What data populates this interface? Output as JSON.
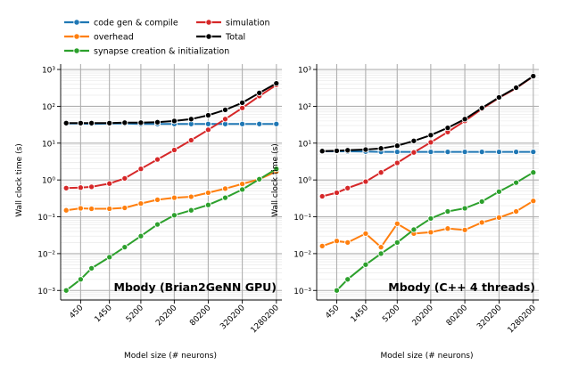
{
  "legend": {
    "items": [
      {
        "label": "code gen & compile",
        "color": "#1f77b4"
      },
      {
        "label": "overhead",
        "color": "#ff7f0e"
      },
      {
        "label": "synapse creation & initialization",
        "color": "#2ca02c"
      },
      {
        "label": "simulation",
        "color": "#d62728"
      },
      {
        "label": "Total",
        "color": "#000000"
      }
    ]
  },
  "chart_data": [
    {
      "type": "line",
      "title": "Mbody (Brian2GeNN GPU)",
      "xlabel": "Model size (# neurons)",
      "ylabel": "Wall clock time (s)",
      "x_scale": "log",
      "y_scale": "log",
      "xticks": [
        "450",
        "1450",
        "5200",
        "20200",
        "80200",
        "320200",
        "1280200"
      ],
      "yticks": [
        "10⁻³",
        "10⁻²",
        "10⁻¹",
        "10⁰",
        "10¹",
        "10²",
        "10³"
      ],
      "ylim": [
        0.0005,
        1500
      ],
      "grid": true,
      "x": [
        250,
        450,
        700,
        1450,
        2700,
        5200,
        10200,
        20200,
        40200,
        80200,
        160200,
        320200,
        640200,
        1280200
      ],
      "series": [
        {
          "name": "code gen & compile",
          "color": "#1f77b4",
          "values": [
            34,
            34,
            33,
            34,
            34,
            33,
            33,
            33,
            33,
            33,
            33,
            33,
            33,
            33
          ]
        },
        {
          "name": "overhead",
          "color": "#ff7f0e",
          "values": [
            0.15,
            0.17,
            0.165,
            0.165,
            0.175,
            0.23,
            0.29,
            0.33,
            0.35,
            0.45,
            0.58,
            0.78,
            1.05,
            1.7
          ]
        },
        {
          "name": "synapse creation & initialization",
          "color": "#2ca02c",
          "values": [
            0.001,
            0.002,
            0.004,
            0.008,
            0.015,
            0.03,
            0.062,
            0.11,
            0.15,
            0.21,
            0.33,
            0.55,
            1.05,
            2.0
          ]
        },
        {
          "name": "simulation",
          "color": "#d62728",
          "values": [
            0.6,
            0.62,
            0.65,
            0.8,
            1.1,
            2.0,
            3.6,
            6.5,
            12,
            23,
            45,
            90,
            190,
            380
          ]
        },
        {
          "name": "Total",
          "color": "#000000",
          "values": [
            35,
            35,
            35,
            35,
            36,
            36,
            37,
            40,
            45,
            57,
            80,
            125,
            230,
            420
          ]
        }
      ]
    },
    {
      "type": "line",
      "title": "Mbody (C++ 4 threads)",
      "xlabel": "Model size (# neurons)",
      "ylabel": "Wall clock time (s)",
      "x_scale": "log",
      "y_scale": "log",
      "xticks": [
        "450",
        "1450",
        "5200",
        "20200",
        "80200",
        "320200",
        "1280200"
      ],
      "yticks": [
        "10⁻³",
        "10⁻²",
        "10⁻¹",
        "10⁰",
        "10¹",
        "10²",
        "10³"
      ],
      "ylim": [
        0.0005,
        1500
      ],
      "grid": true,
      "x": [
        250,
        450,
        700,
        1450,
        2700,
        5200,
        10200,
        20200,
        40200,
        80200,
        160200,
        320200,
        640200,
        1280200
      ],
      "series": [
        {
          "name": "code gen & compile",
          "color": "#1f77b4",
          "values": [
            6.0,
            6.0,
            6.0,
            5.9,
            5.8,
            5.8,
            5.8,
            5.8,
            5.8,
            5.8,
            5.8,
            5.8,
            5.8,
            5.8
          ]
        },
        {
          "name": "overhead",
          "color": "#ff7f0e",
          "values": [
            0.016,
            0.022,
            0.02,
            0.035,
            0.015,
            0.065,
            0.035,
            0.038,
            0.048,
            0.044,
            0.07,
            0.095,
            0.14,
            0.27
          ]
        },
        {
          "name": "synapse creation & initialization",
          "color": "#2ca02c",
          "values": [
            null,
            0.001,
            0.002,
            0.005,
            0.01,
            0.02,
            0.045,
            0.09,
            0.14,
            0.17,
            0.26,
            0.48,
            0.85,
            1.6
          ]
        },
        {
          "name": "simulation",
          "color": "#d62728",
          "values": [
            0.36,
            0.45,
            0.6,
            0.9,
            1.6,
            2.9,
            5.6,
            10.5,
            20,
            40,
            85,
            170,
            310,
            650
          ]
        },
        {
          "name": "Total",
          "color": "#000000",
          "values": [
            6.1,
            6.2,
            6.4,
            6.7,
            7.2,
            8.5,
            11.5,
            16.5,
            26,
            45,
            90,
            175,
            320,
            660
          ]
        }
      ]
    }
  ]
}
